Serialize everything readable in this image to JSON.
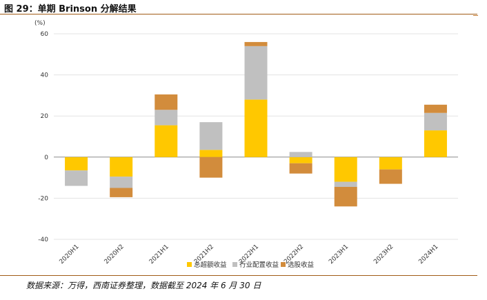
{
  "figure_title": "图 29：单期 Brinson 分解结果",
  "source_note": "数据来源：万得，西南证券整理，数据截至 2024 年 6 月 30 日",
  "colors": {
    "excess_return": "#ffc800",
    "industry_allocation": "#c0c0c0",
    "stock_selection": "#d28c3c",
    "rule": "#a05a14",
    "grid": "#e3e3e3"
  },
  "chart_data": {
    "type": "bar",
    "stacking": "stacked (positive and negative stacked separately)",
    "unit": "(%)",
    "categories": [
      "2020H1",
      "2020H2",
      "2021H1",
      "2021H2",
      "2022H1",
      "2022H2",
      "2023H1",
      "2023H2",
      "2024H1"
    ],
    "series": [
      {
        "name": "总超额收益",
        "color_key": "excess_return",
        "values": [
          -6.5,
          -9.5,
          15.5,
          3.5,
          28,
          -3,
          -12,
          -6,
          13
        ]
      },
      {
        "name": "行业配置收益",
        "color_key": "industry_allocation",
        "values": [
          -7.5,
          -5.5,
          7.5,
          13.5,
          26,
          2.5,
          -2.5,
          0,
          8.5
        ]
      },
      {
        "name": "选股收益",
        "color_key": "stock_selection",
        "values": [
          0,
          -4.5,
          7.5,
          -10,
          2,
          -5,
          -9.5,
          -7,
          4
        ]
      }
    ],
    "ylim": [
      -40,
      60
    ],
    "yticks": [
      -40,
      -20,
      0,
      20,
      40,
      60
    ],
    "legend_position": "bottom-center",
    "grid": true
  }
}
